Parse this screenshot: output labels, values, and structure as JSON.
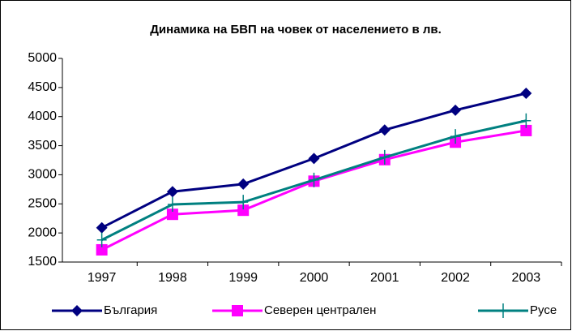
{
  "chart_data": {
    "type": "line",
    "title": "Динамика на БВП на човек от населението в лв.",
    "categories": [
      "1997",
      "1998",
      "1999",
      "2000",
      "2001",
      "2002",
      "2003"
    ],
    "series": [
      {
        "name": "България",
        "color": "#000080",
        "marker": "diamond",
        "values": [
          2090,
          2710,
          2840,
          3280,
          3770,
          4110,
          4400
        ]
      },
      {
        "name": "Северен централен",
        "color": "#ff00ff",
        "marker": "square",
        "values": [
          1710,
          2320,
          2390,
          2890,
          3260,
          3560,
          3760
        ]
      },
      {
        "name": "Русе",
        "color": "#008080",
        "marker": "plus",
        "values": [
          1880,
          2490,
          2530,
          2910,
          3300,
          3660,
          3930
        ]
      }
    ],
    "ylim": [
      1500,
      5000
    ],
    "yticks": [
      1500,
      2000,
      2500,
      3000,
      3500,
      4000,
      4500,
      5000
    ],
    "grid": false,
    "legend": "bottom"
  }
}
